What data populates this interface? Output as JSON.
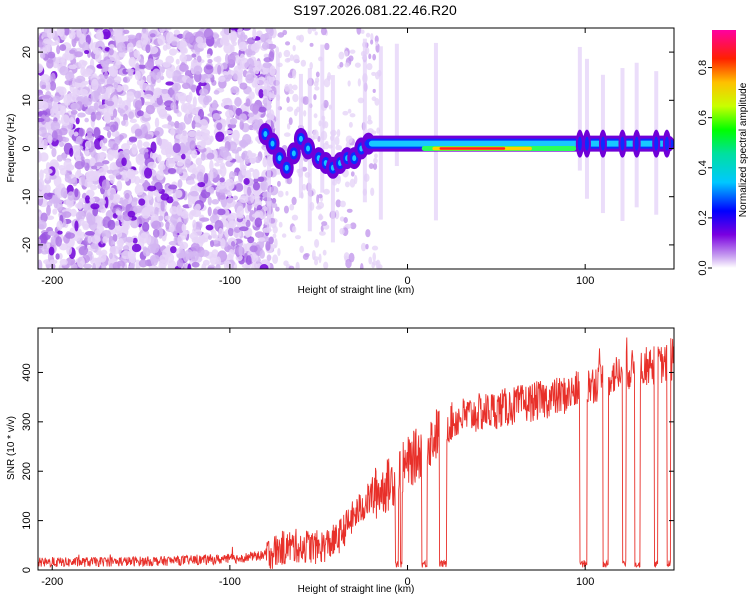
{
  "title": "S197.2026.081.22.46.R20",
  "chart_data": [
    {
      "type": "heatmap",
      "name": "spectrogram",
      "xlabel": "Height of straight line (km)",
      "ylabel": "Frequency (Hz)",
      "xlim": [
        -208,
        150
      ],
      "ylim": [
        -25,
        25
      ],
      "xticks": [
        -200,
        -100,
        0,
        100
      ],
      "yticks": [
        -20,
        -10,
        0,
        10,
        20
      ],
      "colorbar": {
        "label": "Normalized spectral amplitude",
        "range": [
          0,
          0.95
        ],
        "ticks": [
          0.0,
          0.2,
          0.4,
          0.6,
          0.8
        ]
      }
    },
    {
      "type": "line",
      "name": "snr",
      "xlabel": "Height of straight line (km)",
      "ylabel": "SNR (10 * v/v)",
      "xlim": [
        -208,
        150
      ],
      "ylim": [
        0,
        490
      ],
      "xticks": [
        -200,
        -100,
        0,
        100
      ],
      "yticks": [
        0,
        100,
        200,
        300,
        400
      ],
      "color": "#e8302a",
      "profile": [
        [
          -208,
          15
        ],
        [
          -140,
          18
        ],
        [
          -100,
          22
        ],
        [
          -80,
          30
        ],
        [
          -70,
          45
        ],
        [
          -60,
          50
        ],
        [
          -50,
          45
        ],
        [
          -40,
          60
        ],
        [
          -30,
          110
        ],
        [
          -20,
          150
        ],
        [
          -10,
          175
        ],
        [
          0,
          215
        ],
        [
          10,
          250
        ],
        [
          20,
          290
        ],
        [
          30,
          310
        ],
        [
          50,
          325
        ],
        [
          70,
          340
        ],
        [
          90,
          355
        ],
        [
          100,
          370
        ],
        [
          110,
          385
        ],
        [
          120,
          400
        ],
        [
          130,
          410
        ],
        [
          150,
          420
        ]
      ],
      "dropouts": [
        [
          -7,
          -5
        ],
        [
          -4,
          -3
        ],
        [
          8,
          11
        ],
        [
          18,
          22
        ],
        [
          97,
          101
        ],
        [
          110,
          113
        ],
        [
          121,
          123
        ],
        [
          128,
          131
        ],
        [
          139,
          141
        ],
        [
          146,
          148
        ]
      ]
    }
  ]
}
